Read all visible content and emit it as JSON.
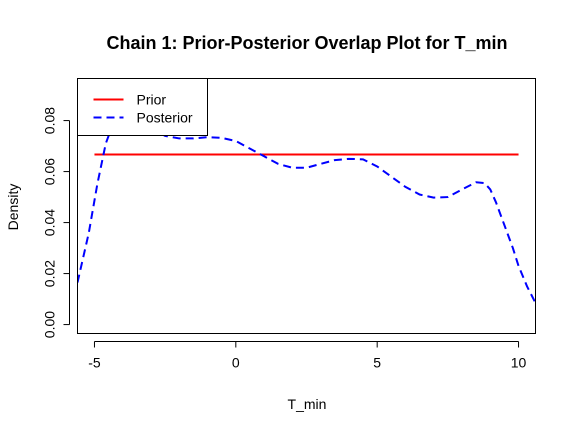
{
  "chart_data": {
    "type": "line",
    "title": "Chain 1: Prior-Posterior Overlap Plot for T_min",
    "xlabel": "T_min",
    "ylabel": "Density",
    "xlim": [
      -5.6,
      10.6
    ],
    "ylim": [
      -0.0035,
      0.0965
    ],
    "xticks": [
      -5,
      0,
      5,
      10
    ],
    "yticks": [
      0.0,
      0.02,
      0.04,
      0.06,
      0.08
    ],
    "ytick_labels": [
      "0.00",
      "0.02",
      "0.04",
      "0.06",
      "0.08"
    ],
    "legend_position": "top-left",
    "grid": false,
    "series": [
      {
        "name": "Prior",
        "color": "#ff0000",
        "dash": "solid",
        "x": [
          -5,
          10
        ],
        "y": [
          0.0667,
          0.0667
        ]
      },
      {
        "name": "Posterior",
        "color": "#0000ff",
        "dash": "dashed",
        "x": [
          -5.6,
          -5.2,
          -4.9,
          -4.6,
          -4.3,
          -4.0,
          -3.5,
          -3.0,
          -2.5,
          -2.0,
          -1.5,
          -1.0,
          -0.5,
          0.0,
          0.5,
          1.0,
          1.5,
          2.0,
          2.5,
          3.0,
          3.5,
          4.0,
          4.5,
          5.0,
          5.5,
          6.0,
          6.5,
          7.0,
          7.5,
          8.0,
          8.5,
          8.8,
          9.0,
          9.2,
          9.5,
          9.8,
          10.0,
          10.3,
          10.6
        ],
        "y": [
          0.0165,
          0.036,
          0.055,
          0.071,
          0.08,
          0.083,
          0.081,
          0.077,
          0.074,
          0.073,
          0.073,
          0.0735,
          0.0732,
          0.072,
          0.069,
          0.066,
          0.063,
          0.0615,
          0.0615,
          0.063,
          0.0645,
          0.065,
          0.0648,
          0.062,
          0.058,
          0.054,
          0.051,
          0.0498,
          0.05,
          0.053,
          0.0558,
          0.0555,
          0.053,
          0.048,
          0.039,
          0.03,
          0.023,
          0.015,
          0.0085
        ]
      }
    ]
  }
}
